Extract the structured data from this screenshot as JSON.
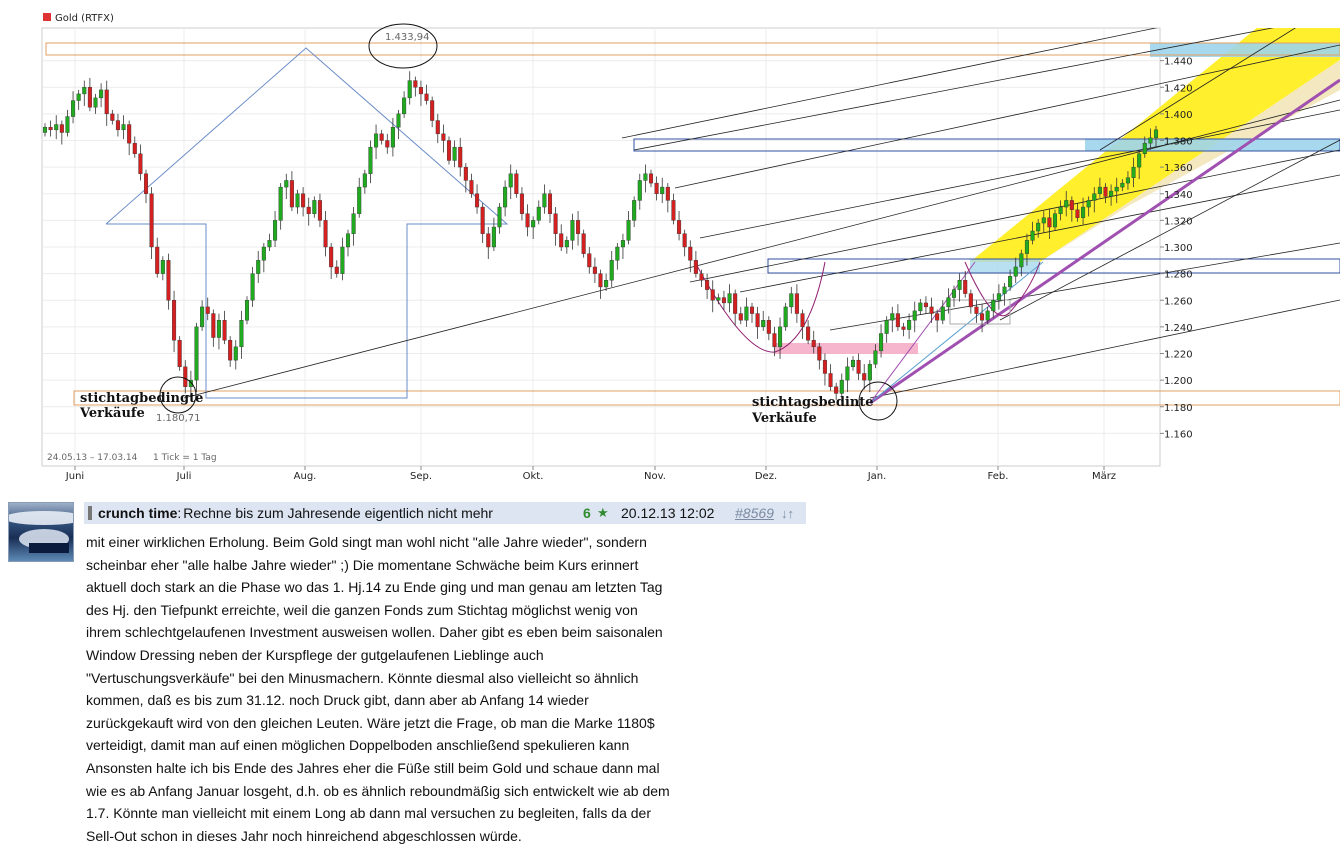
{
  "chart_data": {
    "type": "candlestick",
    "legend_label": "Gold (RTFX)",
    "legend_color": "#dd3333",
    "range_label": "24.05.13 – 17.03.14",
    "tick_label": "1 Tick = 1 Tag",
    "months": [
      "Juni",
      "Juli",
      "Aug.",
      "Sep.",
      "Okt.",
      "Nov.",
      "Dez.",
      "Jan.",
      "Feb.",
      "März"
    ],
    "ylim": [
      1140,
      1460
    ],
    "yticks": [
      "1.440",
      "1.420",
      "1.400",
      "1.380",
      "1.360",
      "1.340",
      "1.320",
      "1.300",
      "1.280",
      "1.260",
      "1.240",
      "1.220",
      "1.200",
      "1.180",
      "1.160"
    ],
    "high_label": "1.433,94",
    "low_label": "1.180,71",
    "annotations": [
      {
        "line1": "stichtagbedingte",
        "line2": "Verkäufe"
      },
      {
        "line1": "stichtagsbedinte",
        "line2": "Verkäufe"
      }
    ],
    "up_color": "#1faa1f",
    "down_color": "#d42020",
    "candle_closes": [
      1390,
      1388,
      1392,
      1386,
      1398,
      1410,
      1415,
      1420,
      1405,
      1412,
      1418,
      1400,
      1395,
      1388,
      1392,
      1378,
      1370,
      1355,
      1340,
      1300,
      1280,
      1290,
      1260,
      1230,
      1210,
      1195,
      1200,
      1240,
      1255,
      1250,
      1232,
      1245,
      1230,
      1215,
      1225,
      1245,
      1260,
      1280,
      1290,
      1300,
      1305,
      1320,
      1345,
      1350,
      1330,
      1340,
      1330,
      1325,
      1335,
      1320,
      1300,
      1285,
      1280,
      1300,
      1310,
      1325,
      1345,
      1355,
      1375,
      1385,
      1380,
      1375,
      1390,
      1400,
      1412,
      1425,
      1420,
      1415,
      1410,
      1395,
      1385,
      1380,
      1365,
      1375,
      1360,
      1350,
      1340,
      1330,
      1310,
      1300,
      1315,
      1330,
      1345,
      1355,
      1340,
      1325,
      1315,
      1320,
      1330,
      1340,
      1325,
      1310,
      1300,
      1305,
      1320,
      1310,
      1295,
      1285,
      1280,
      1270,
      1275,
      1290,
      1300,
      1305,
      1320,
      1335,
      1350,
      1355,
      1348,
      1340,
      1345,
      1335,
      1320,
      1310,
      1300,
      1290,
      1280,
      1275,
      1268,
      1260,
      1262,
      1258,
      1265,
      1250,
      1245,
      1255,
      1250,
      1240,
      1245,
      1235,
      1225,
      1240,
      1255,
      1265,
      1250,
      1240,
      1230,
      1225,
      1215,
      1205,
      1195,
      1190,
      1200,
      1210,
      1215,
      1205,
      1200,
      1212,
      1222,
      1235,
      1245,
      1250,
      1240,
      1238,
      1245,
      1252,
      1258,
      1255,
      1250,
      1245,
      1255,
      1262,
      1268,
      1275,
      1265,
      1255,
      1250,
      1245,
      1252,
      1260,
      1265,
      1270,
      1278,
      1285,
      1295,
      1305,
      1312,
      1318,
      1322,
      1315,
      1325,
      1330,
      1335,
      1328,
      1322,
      1330,
      1335,
      1340,
      1345,
      1338,
      1342,
      1345,
      1348,
      1352,
      1360,
      1370,
      1378,
      1382,
      1388
    ]
  },
  "post": {
    "author": "crunch time",
    "subject_sep": ":",
    "subject": "Rechne bis zum Jahresende eigentlich nicht mehr",
    "score": "6",
    "date": "20.12.13 12:02",
    "number": "#8569",
    "arrows": "↓↑",
    "lines": [
      "mit einer wirklichen Erholung. Beim Gold singt man wohl nicht \"alle Jahre wieder\", sondern",
      "scheinbar eher \"alle halbe Jahre wieder\" ;) Die momentane Schwäche beim Kurs erinnert",
      "aktuell doch stark an die Phase wo das 1. Hj.14 zu Ende ging und man genau am letzten Tag",
      "des Hj. den Tiefpunkt erreichte, weil die ganzen Fonds zum Stichtag möglichst wenig von",
      "ihrem schlechtgelaufenen Investment ausweisen wollen.  Daher gibt es eben beim saisonalen",
      "Window Dressing neben der Kurspflege der gutgelaufenen Lieblinge auch",
      "\"Vertuschungsverkäufe\" bei den Minusmachern. Könnte diesmal also vielleicht so ähnlich",
      "kommen, daß es bis zum 31.12. noch Druck gibt, dann aber ab Anfang 14 wieder",
      "zurückgekauft wird von den gleichen Leuten. Wäre jetzt die Frage, ob man die Marke 1180$",
      "verteidigt, damit man auf einen möglichen Doppelboden anschließend spekulieren kann",
      "Ansonsten halte ich bis Ende des Jahres eher die Füße still beim Gold und schaue dann mal",
      "wie es ab Anfang Januar losgeht, d.h. ob es ähnlich reboundmäßig sich entwickelt wie ab dem",
      "1.7. Könnte man vielleicht mit einem Long ab dann mal versuchen zu begleiten, falls da der",
      "Sell-Out schon in dieses Jahr noch hinreichend abgeschlossen würde."
    ]
  }
}
